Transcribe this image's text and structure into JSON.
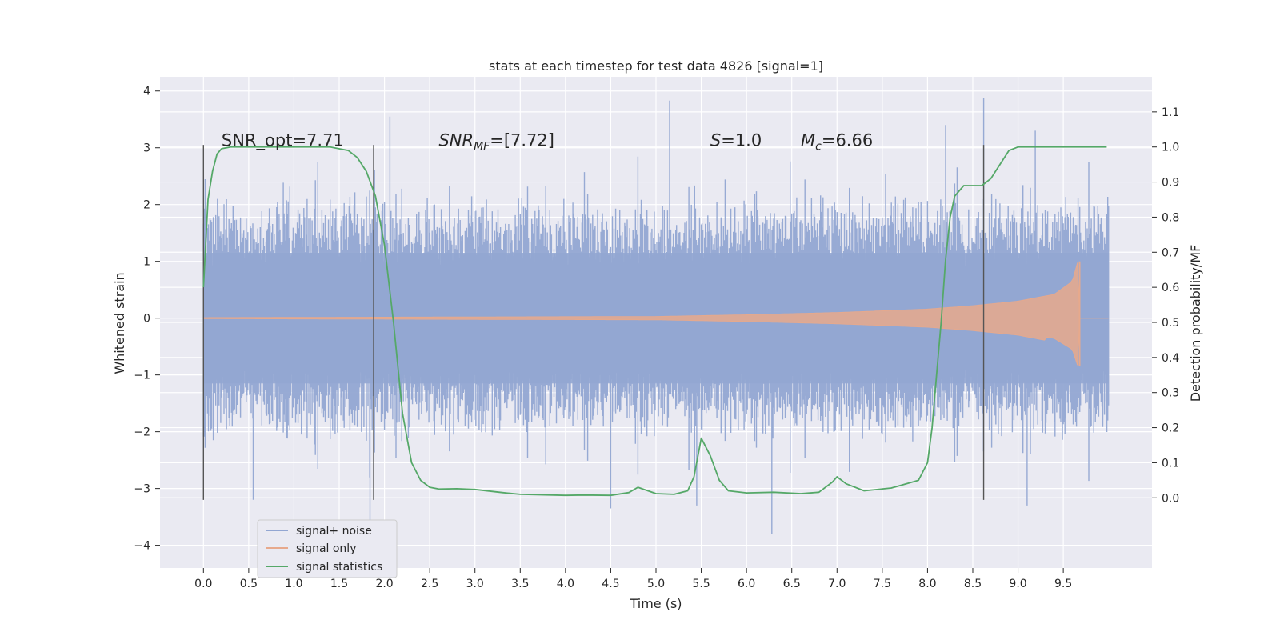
{
  "chart_data": {
    "type": "line",
    "title": "stats at each timestep for test data 4826 [signal=1]",
    "xlabel": "Time (s)",
    "ylabel": "Whitened strain",
    "y2label": "Detection probability/MF",
    "xlim": [
      -0.48,
      10.48
    ],
    "ylim": [
      -4.4,
      4.25
    ],
    "y2lim": [
      -0.2,
      1.2
    ],
    "xticks": [
      "0.0",
      "0.5",
      "1.0",
      "1.5",
      "2.0",
      "2.5",
      "3.0",
      "3.5",
      "4.0",
      "4.5",
      "5.0",
      "5.5",
      "6.0",
      "6.5",
      "7.0",
      "7.5",
      "8.0",
      "8.5",
      "9.0",
      "9.5"
    ],
    "yticks": [
      "−4",
      "−3",
      "−2",
      "−1",
      "0",
      "1",
      "2",
      "3",
      "4"
    ],
    "y2ticks": [
      "0.0",
      "0.1",
      "0.2",
      "0.3",
      "0.4",
      "0.5",
      "0.6",
      "0.7",
      "0.8",
      "0.9",
      "1.0",
      "1.1"
    ],
    "grid": true,
    "legend_placement": "lower-left",
    "annotations": [
      {
        "id": "snr-opt",
        "label": "SNR_opt=7.71",
        "x": 0.2,
        "y": 3.0
      },
      {
        "id": "snr-mf",
        "label": "SNR",
        "sub": "MF",
        "rest": "=[7.72]",
        "x": 2.6,
        "y": 3.0
      },
      {
        "id": "s",
        "label": "S",
        "rest": "=1.0",
        "x": 5.6,
        "y": 3.0
      },
      {
        "id": "mc",
        "label": "M",
        "sub": "c",
        "rest": "=6.66",
        "x": 6.6,
        "y": 3.0
      }
    ],
    "vlines": [
      0.0,
      1.88,
      8.62
    ],
    "vline_range": [
      -3.2,
      3.05
    ],
    "series": [
      {
        "name": "signal+ noise",
        "color": "#92a6d2",
        "axis": "left",
        "kind": "noise",
        "x_range": [
          0.0,
          10.0
        ],
        "typical_amplitude": 2.2,
        "peak_points": [
          {
            "x": 1.84,
            "y": -4.1
          },
          {
            "x": 2.06,
            "y": 3.55
          },
          {
            "x": 5.15,
            "y": 3.83
          },
          {
            "x": 6.28,
            "y": -3.8
          },
          {
            "x": 8.62,
            "y": 3.88
          },
          {
            "x": 8.2,
            "y": 3.4
          },
          {
            "x": 9.19,
            "y": 3.3
          },
          {
            "x": 4.5,
            "y": -3.35
          },
          {
            "x": 0.55,
            "y": -3.2
          },
          {
            "x": 5.45,
            "y": -3.3
          },
          {
            "x": 9.1,
            "y": -3.3
          }
        ]
      },
      {
        "name": "signal only",
        "color": "#e7a98c",
        "axis": "left",
        "kind": "chirp",
        "x_range": [
          0.0,
          10.0
        ],
        "envelope": [
          [
            0.0,
            0.01
          ],
          [
            5.0,
            0.03
          ],
          [
            6.0,
            0.06
          ],
          [
            7.0,
            0.1
          ],
          [
            8.0,
            0.16
          ],
          [
            8.5,
            0.22
          ],
          [
            9.0,
            0.3
          ],
          [
            9.4,
            0.42
          ],
          [
            9.6,
            0.65
          ],
          [
            9.66,
            1.0
          ]
        ],
        "merger_x": 9.68,
        "peak": 1.0,
        "trough": -0.85
      },
      {
        "name": "signal statistics",
        "color": "#55a868",
        "axis": "right",
        "x": [
          0.0,
          0.05,
          0.1,
          0.15,
          0.2,
          0.3,
          0.5,
          1.0,
          1.4,
          1.6,
          1.7,
          1.8,
          1.9,
          2.0,
          2.1,
          2.2,
          2.3,
          2.4,
          2.5,
          2.6,
          2.8,
          3.0,
          3.3,
          3.5,
          4.0,
          4.2,
          4.5,
          4.7,
          4.8,
          5.0,
          5.2,
          5.35,
          5.42,
          5.5,
          5.6,
          5.7,
          5.8,
          6.0,
          6.3,
          6.6,
          6.8,
          6.95,
          7.0,
          7.1,
          7.3,
          7.6,
          7.9,
          8.0,
          8.05,
          8.1,
          8.15,
          8.2,
          8.25,
          8.3,
          8.4,
          8.6,
          8.7,
          8.8,
          8.9,
          9.0,
          9.2,
          9.5,
          9.98
        ],
        "y": [
          0.6,
          0.85,
          0.93,
          0.98,
          0.995,
          1.0,
          1.0,
          1.0,
          1.0,
          0.99,
          0.97,
          0.93,
          0.86,
          0.72,
          0.5,
          0.24,
          0.1,
          0.05,
          0.03,
          0.025,
          0.026,
          0.024,
          0.015,
          0.01,
          0.007,
          0.008,
          0.007,
          0.015,
          0.03,
          0.012,
          0.01,
          0.02,
          0.06,
          0.17,
          0.12,
          0.05,
          0.02,
          0.014,
          0.016,
          0.012,
          0.016,
          0.045,
          0.06,
          0.04,
          0.02,
          0.028,
          0.05,
          0.1,
          0.2,
          0.35,
          0.5,
          0.68,
          0.8,
          0.86,
          0.89,
          0.89,
          0.91,
          0.95,
          0.99,
          1.0,
          1.0,
          1.0,
          1.0
        ]
      }
    ]
  }
}
